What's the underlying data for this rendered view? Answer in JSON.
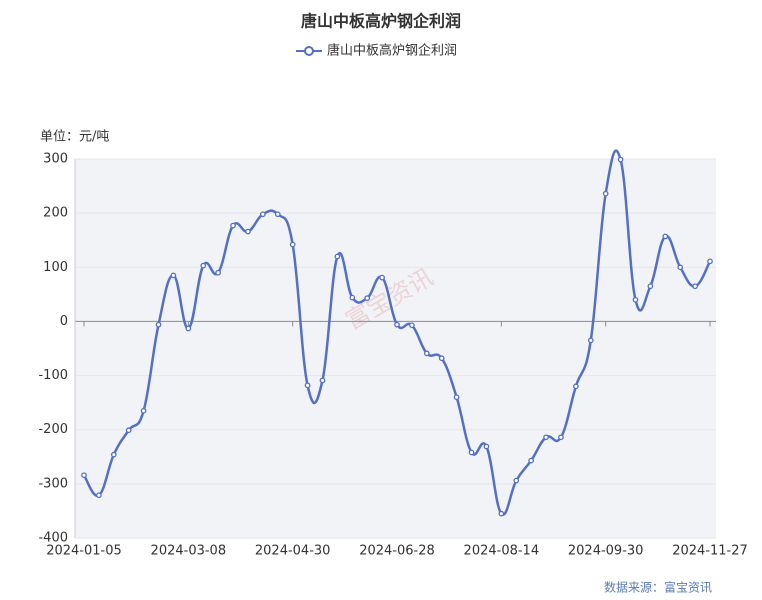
{
  "chart_data": {
    "type": "line",
    "title": "唐山中板高炉钢企利润",
    "y_label": "单位：元/吨",
    "source": "数据来源：富宝资讯",
    "watermark": "富宝资讯",
    "categories": [
      "2024-01-05",
      null,
      null,
      null,
      null,
      null,
      null,
      "2024-03-08",
      null,
      null,
      null,
      null,
      null,
      null,
      "2024-04-30",
      null,
      null,
      null,
      null,
      null,
      null,
      "2024-06-28",
      null,
      null,
      null,
      null,
      null,
      null,
      "2024-08-14",
      null,
      null,
      null,
      null,
      null,
      null,
      "2024-09-30",
      null,
      null,
      null,
      null,
      null,
      null,
      "2024-11-27"
    ],
    "series": [
      {
        "name": "唐山中板高炉钢企利润",
        "color": "#5470c6",
        "values": [
          -284,
          -321,
          -246,
          -201,
          -165,
          -6,
          85,
          -13,
          103,
          90,
          177,
          166,
          198,
          198,
          142,
          -118,
          -109,
          120,
          44,
          43,
          81,
          -6,
          -7,
          -59,
          -68,
          -140,
          -242,
          -231,
          -355,
          -294,
          -257,
          -214,
          -214,
          -120,
          -35,
          236,
          299,
          40,
          65,
          157,
          100,
          65,
          111
        ]
      }
    ],
    "ylim": [
      -400,
      300
    ],
    "yticks": [
      -400,
      -300,
      -200,
      -100,
      0,
      100,
      200,
      300
    ],
    "grid": true
  }
}
